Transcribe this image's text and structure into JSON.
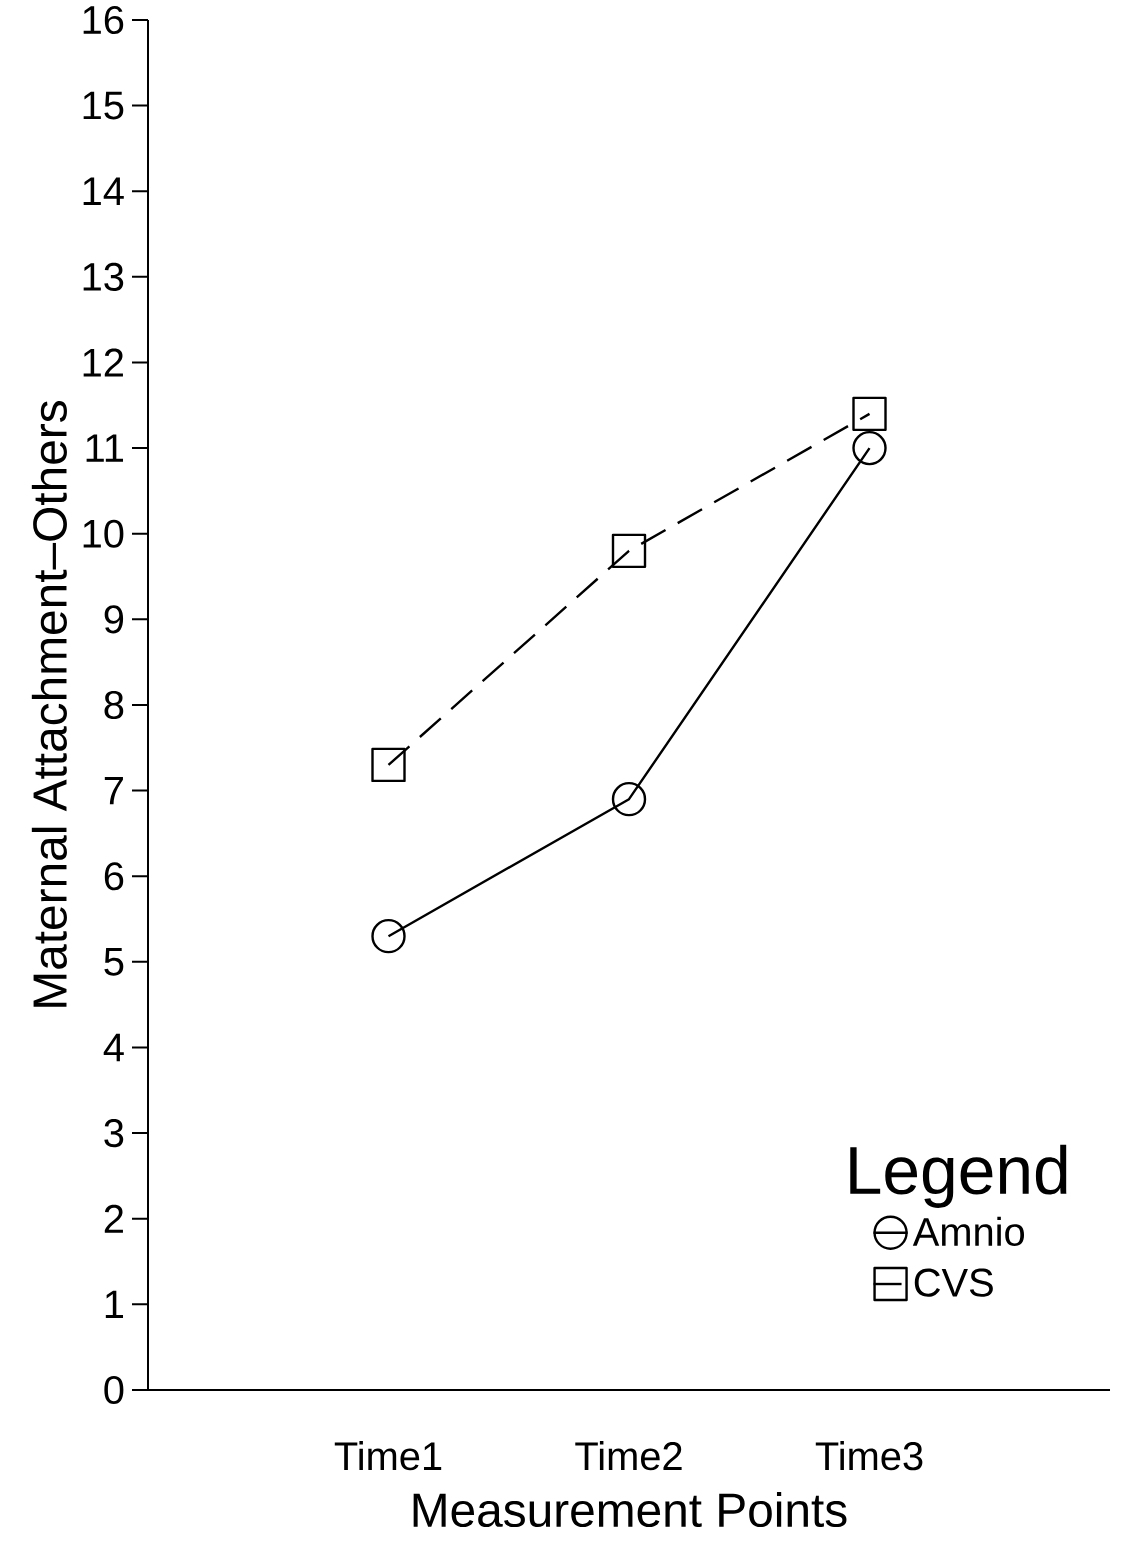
{
  "chart_data": {
    "type": "line",
    "xlabel": "Measurement Points",
    "ylabel": "Maternal Attachment–Others",
    "legend_title": "Legend",
    "categories": [
      "Time1",
      "Time2",
      "Time3"
    ],
    "series": [
      {
        "name": "Amnio",
        "color": "#000000",
        "values": [
          5.3,
          6.9,
          11.0
        ],
        "marker": "circle",
        "line_style": "solid"
      },
      {
        "name": "CVS",
        "color": "#000000",
        "values": [
          7.3,
          9.8,
          11.4
        ],
        "marker": "square",
        "line_style": "dashed"
      }
    ],
    "ylim": [
      0,
      16
    ],
    "yticks": [
      0,
      1,
      2,
      3,
      4,
      5,
      6,
      7,
      8,
      9,
      10,
      11,
      12,
      13,
      14,
      15,
      16
    ],
    "grid": false,
    "legend": "bottom right"
  }
}
